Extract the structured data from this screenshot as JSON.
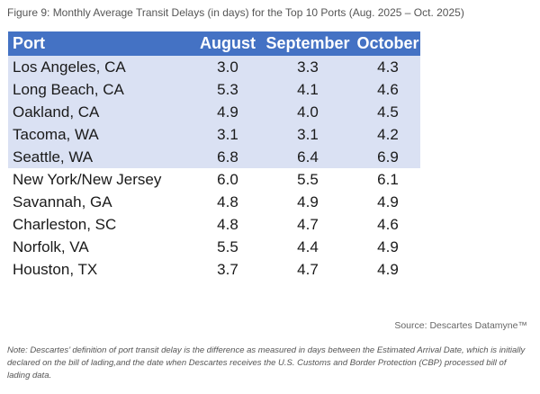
{
  "figure_title": "Figure 9: Monthly Average Transit Delays (in days) for the Top 10 Ports (Aug. 2025 – Oct. 2025)",
  "source": "Source: Descartes Datamyne™",
  "note": "Note: Descartes’ definition of port transit delay is the difference as measured in days between the Estimated Arrival Date, which is initially declared on the bill of lading,and the date when Descartes receives the U.S. Customs and Border Protection (CBP) processed bill of lading data.",
  "colors": {
    "header_bg": "#4472c4",
    "highlight_row_bg": "#dae1f3"
  },
  "chart_data": {
    "type": "table",
    "title": "Figure 9: Monthly Average Transit Delays (in days) for the Top 10 Ports (Aug. 2025 – Oct. 2025)",
    "columns": [
      "Port",
      "August",
      "September",
      "October"
    ],
    "rows": [
      {
        "port": "Los Angeles, CA",
        "values": [
          "3.0",
          "3.3",
          "4.3"
        ],
        "highlighted": true
      },
      {
        "port": "Long Beach, CA",
        "values": [
          "5.3",
          "4.1",
          "4.6"
        ],
        "highlighted": true
      },
      {
        "port": "Oakland, CA",
        "values": [
          "4.9",
          "4.0",
          "4.5"
        ],
        "highlighted": true
      },
      {
        "port": "Tacoma, WA",
        "values": [
          "3.1",
          "3.1",
          "4.2"
        ],
        "highlighted": true
      },
      {
        "port": "Seattle, WA",
        "values": [
          "6.8",
          "6.4",
          "6.9"
        ],
        "highlighted": true
      },
      {
        "port": "New York/New Jersey",
        "values": [
          "6.0",
          "5.5",
          "6.1"
        ],
        "highlighted": false
      },
      {
        "port": "Savannah, GA",
        "values": [
          "4.8",
          "4.9",
          "4.9"
        ],
        "highlighted": false
      },
      {
        "port": "Charleston, SC",
        "values": [
          "4.8",
          "4.7",
          "4.6"
        ],
        "highlighted": false
      },
      {
        "port": "Norfolk, VA",
        "values": [
          "5.5",
          "4.4",
          "4.9"
        ],
        "highlighted": false
      },
      {
        "port": "Houston, TX",
        "values": [
          "3.7",
          "4.7",
          "4.9"
        ],
        "highlighted": false
      }
    ]
  }
}
